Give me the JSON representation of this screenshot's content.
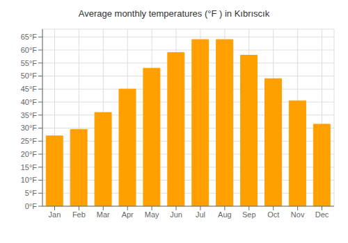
{
  "chart_data": {
    "type": "bar",
    "title": "Average monthly temperatures (°F ) in Kıbrıscık",
    "categories": [
      "Jan",
      "Feb",
      "Mar",
      "Apr",
      "May",
      "Jun",
      "Jul",
      "Aug",
      "Sep",
      "Oct",
      "Nov",
      "Dec"
    ],
    "values": [
      27,
      29.5,
      36,
      45,
      53,
      59,
      64,
      64,
      58,
      49,
      40.5,
      31.5
    ],
    "color": "#FFA000",
    "ylim": [
      0,
      68
    ],
    "yticks": [
      {
        "value": 0,
        "label": "0°F"
      },
      {
        "value": 5,
        "label": "5°F"
      },
      {
        "value": 10,
        "label": "10°F"
      },
      {
        "value": 15,
        "label": "15°F"
      },
      {
        "value": 20,
        "label": "20°F"
      },
      {
        "value": 25,
        "label": "25°F"
      },
      {
        "value": 30,
        "label": "30°F"
      },
      {
        "value": 35,
        "label": "35°F"
      },
      {
        "value": 40,
        "label": "40°F"
      },
      {
        "value": 45,
        "label": "45°F"
      },
      {
        "value": 50,
        "label": "50°F"
      },
      {
        "value": 55,
        "label": "55°F"
      },
      {
        "value": 60,
        "label": "60°F"
      },
      {
        "value": 65,
        "label": "65°F"
      }
    ],
    "grid": true
  }
}
